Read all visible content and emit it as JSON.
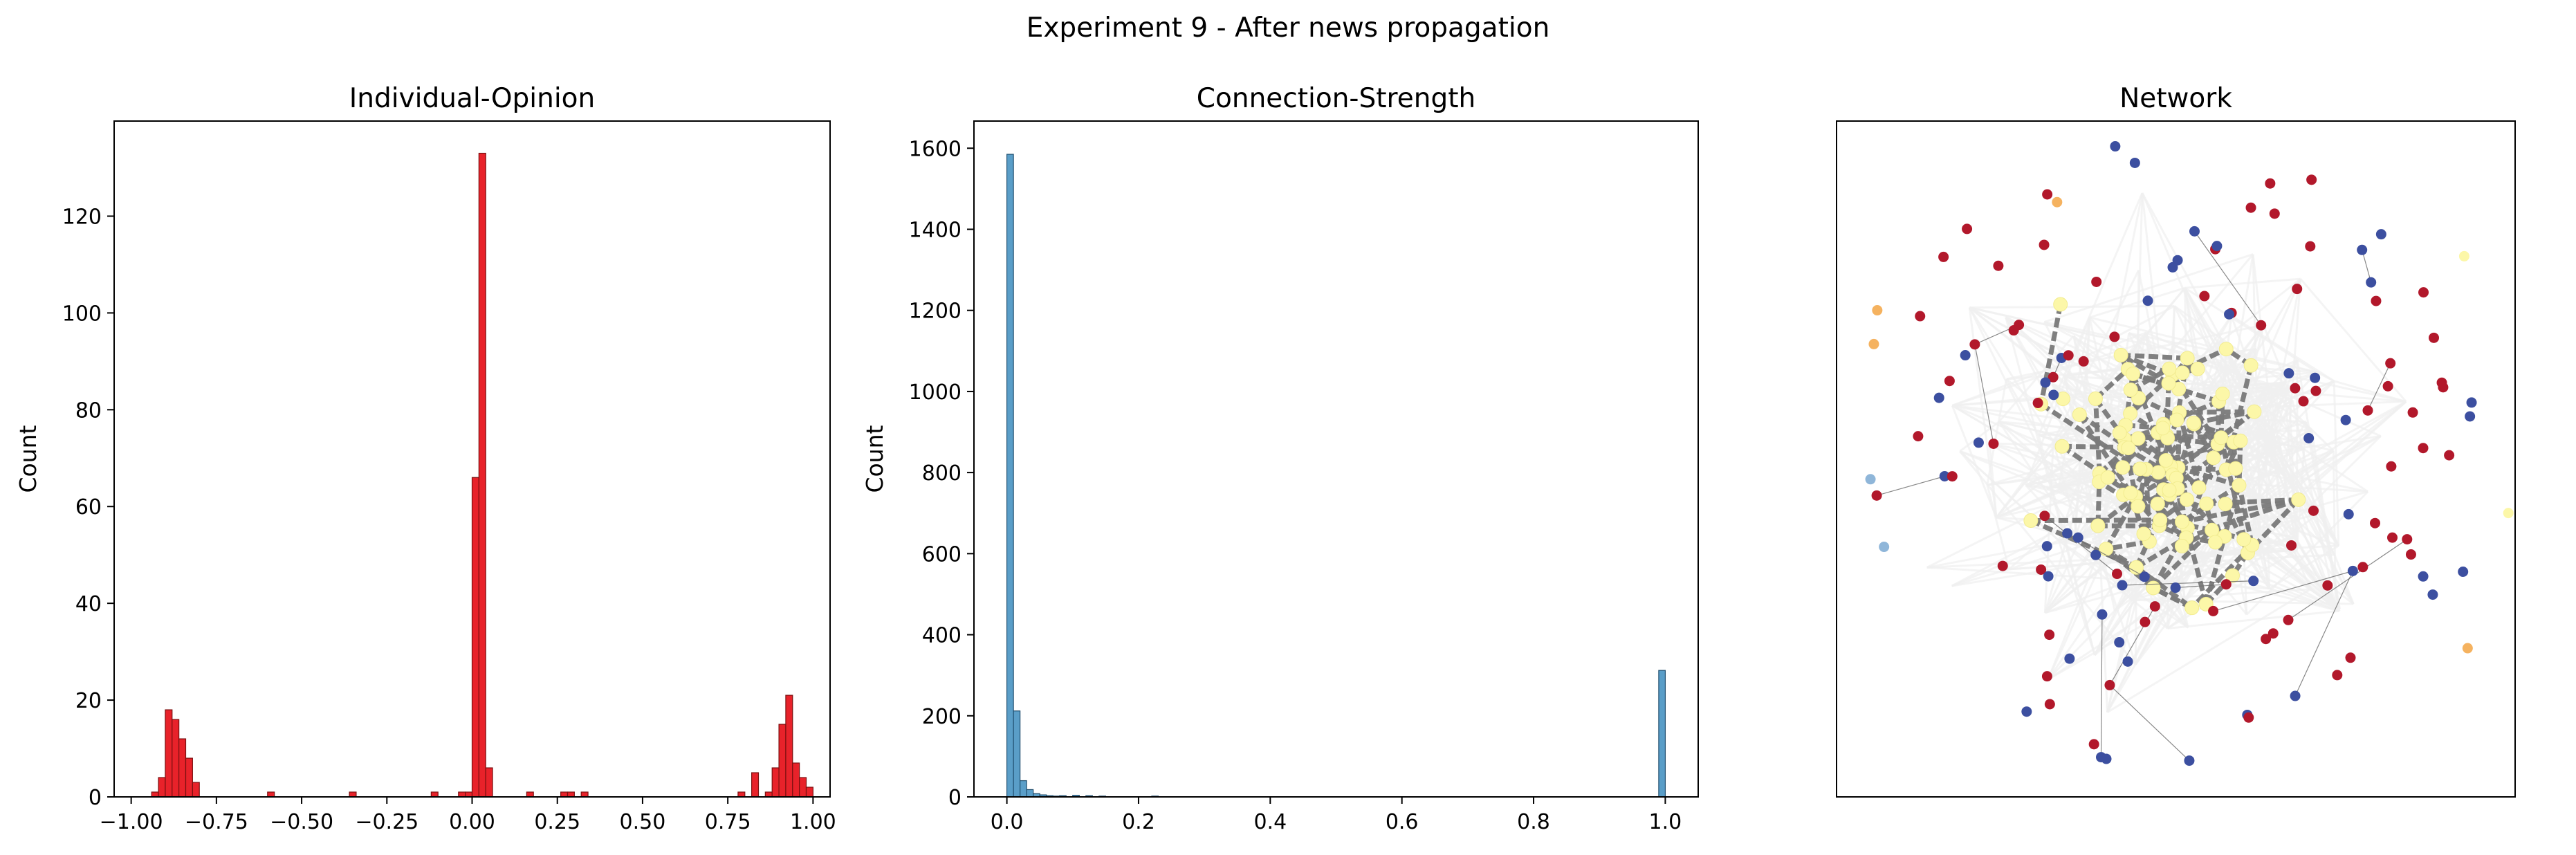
{
  "figure": {
    "suptitle": "Experiment 9 - After news propagation"
  },
  "chart_data": [
    {
      "type": "bar",
      "title": "Individual-Opinion",
      "xlabel": "",
      "ylabel": "Count",
      "xlim": [
        -1.05,
        1.05
      ],
      "ylim": [
        0,
        139.65
      ],
      "xticks": [
        -1.0,
        -0.75,
        -0.5,
        -0.25,
        0.0,
        0.25,
        0.5,
        0.75,
        1.0
      ],
      "xtick_labels": [
        "−1.00",
        "−0.75",
        "−0.50",
        "−0.25",
        "0.00",
        "0.25",
        "0.50",
        "0.75",
        "1.00"
      ],
      "yticks": [
        0,
        20,
        40,
        60,
        80,
        100,
        120
      ],
      "ytick_labels": [
        "0",
        "20",
        "40",
        "60",
        "80",
        "100",
        "120"
      ],
      "bin_width": 0.02,
      "bar_color": "#e8222a",
      "edge_color": "#7a1010",
      "bins": [
        {
          "x": -0.93,
          "count": 1
        },
        {
          "x": -0.91,
          "count": 4
        },
        {
          "x": -0.89,
          "count": 18
        },
        {
          "x": -0.87,
          "count": 16
        },
        {
          "x": -0.85,
          "count": 12
        },
        {
          "x": -0.83,
          "count": 8
        },
        {
          "x": -0.81,
          "count": 3
        },
        {
          "x": -0.59,
          "count": 1
        },
        {
          "x": -0.35,
          "count": 1
        },
        {
          "x": -0.11,
          "count": 1
        },
        {
          "x": -0.03,
          "count": 1
        },
        {
          "x": -0.01,
          "count": 1
        },
        {
          "x": 0.01,
          "count": 66
        },
        {
          "x": 0.03,
          "count": 133
        },
        {
          "x": 0.05,
          "count": 6
        },
        {
          "x": 0.17,
          "count": 1
        },
        {
          "x": 0.27,
          "count": 1
        },
        {
          "x": 0.29,
          "count": 1
        },
        {
          "x": 0.33,
          "count": 1
        },
        {
          "x": 0.79,
          "count": 1
        },
        {
          "x": 0.83,
          "count": 5
        },
        {
          "x": 0.87,
          "count": 1
        },
        {
          "x": 0.89,
          "count": 6
        },
        {
          "x": 0.91,
          "count": 15
        },
        {
          "x": 0.93,
          "count": 21
        },
        {
          "x": 0.95,
          "count": 7
        },
        {
          "x": 0.97,
          "count": 4
        },
        {
          "x": 0.99,
          "count": 2
        }
      ]
    },
    {
      "type": "bar",
      "title": "Connection-Strength",
      "xlabel": "",
      "ylabel": "Count",
      "xlim": [
        -0.05,
        1.05
      ],
      "ylim": [
        0,
        1667
      ],
      "xticks": [
        0.0,
        0.2,
        0.4,
        0.6,
        0.8,
        1.0
      ],
      "xtick_labels": [
        "0.0",
        "0.2",
        "0.4",
        "0.6",
        "0.8",
        "1.0"
      ],
      "yticks": [
        0,
        200,
        400,
        600,
        800,
        1000,
        1200,
        1400,
        1600
      ],
      "ytick_labels": [
        "0",
        "200",
        "400",
        "600",
        "800",
        "1000",
        "1200",
        "1400",
        "1600"
      ],
      "bin_width": 0.01,
      "bar_color": "#5a9ec8",
      "edge_color": "#1f4e6e",
      "bins": [
        {
          "x": 0.005,
          "count": 1585
        },
        {
          "x": 0.015,
          "count": 212
        },
        {
          "x": 0.025,
          "count": 40
        },
        {
          "x": 0.035,
          "count": 18
        },
        {
          "x": 0.045,
          "count": 8
        },
        {
          "x": 0.055,
          "count": 5
        },
        {
          "x": 0.065,
          "count": 3
        },
        {
          "x": 0.075,
          "count": 2
        },
        {
          "x": 0.085,
          "count": 3
        },
        {
          "x": 0.105,
          "count": 4
        },
        {
          "x": 0.125,
          "count": 3
        },
        {
          "x": 0.145,
          "count": 2
        },
        {
          "x": 0.225,
          "count": 2
        },
        {
          "x": 0.995,
          "count": 312
        }
      ]
    },
    {
      "type": "scatter",
      "title": "Network",
      "xlabel": "",
      "ylabel": "",
      "xlim": [
        0,
        1
      ],
      "ylim": [
        0,
        1
      ],
      "axes_visible": false,
      "node_colors": {
        "positive": "#b2182b",
        "negative": "#3c4fa0",
        "neutral": "#fcf7a8",
        "mid_orange": "#f5b25f",
        "light_blue": "#8fb6d9"
      },
      "core_edge_color": "#7a7a7a",
      "halo_color": "#f0f0f0"
    }
  ]
}
